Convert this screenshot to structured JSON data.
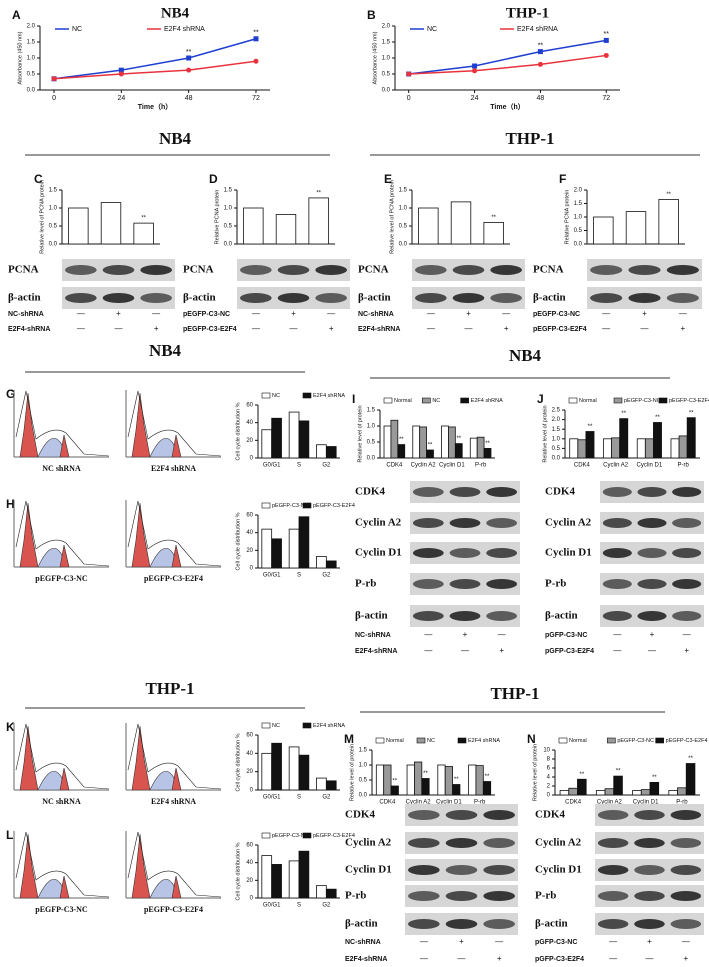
{
  "chart_data": [
    {
      "type": "line",
      "panel": "A",
      "title": "NB4",
      "xlabel": "Time（h）",
      "ylabel": "Absorbance (450 nm)",
      "x": [
        0,
        24,
        48,
        72
      ],
      "xlim": [
        -5,
        77
      ],
      "xticks": [
        0,
        24,
        48,
        72
      ],
      "ylim": [
        0,
        2
      ],
      "yticks": [
        {
          "value": 0,
          "label": "0.0"
        },
        {
          "value": 0.5,
          "label": "0.5"
        },
        {
          "value": 1,
          "label": "1.0"
        },
        {
          "value": 1.5,
          "label": "1.5"
        },
        {
          "value": 2,
          "label": "2.0"
        }
      ],
      "series": [
        {
          "name": "NC",
          "color": "#1f3fd1",
          "values": [
            0.35,
            0.62,
            1.0,
            1.6
          ]
        },
        {
          "name": "E2F4 shRNA",
          "color": "#e8323c",
          "values": [
            0.35,
            0.5,
            0.62,
            0.9
          ]
        }
      ],
      "annotations": [
        "**",
        "**"
      ]
    },
    {
      "type": "line",
      "panel": "B",
      "title": "THP-1",
      "xlabel": "Time（h）",
      "ylabel": "Absorbance (450 nm)",
      "x": [
        0,
        24,
        48,
        72
      ],
      "xlim": [
        -5,
        77
      ],
      "xticks": [
        0,
        24,
        48,
        72
      ],
      "ylim": [
        0,
        2
      ],
      "yticks": [
        {
          "value": 0,
          "label": "0.0"
        },
        {
          "value": 0.5,
          "label": "0.5"
        },
        {
          "value": 1,
          "label": "1.0"
        },
        {
          "value": 1.5,
          "label": "1.5"
        },
        {
          "value": 2,
          "label": "2.0"
        }
      ],
      "series": [
        {
          "name": "NC",
          "color": "#1f3fd1",
          "values": [
            0.5,
            0.75,
            1.2,
            1.55
          ]
        },
        {
          "name": "E2F4 shRNA",
          "color": "#e8323c",
          "values": [
            0.5,
            0.6,
            0.8,
            1.08
          ]
        }
      ],
      "annotations": [
        "**",
        "**"
      ]
    },
    {
      "type": "bar",
      "panel": "C",
      "ylabel": "Relative level of PCNA protein",
      "categories": [
        null,
        null,
        null
      ],
      "values": [
        1.0,
        1.15,
        0.58
      ],
      "color": "#ffffff",
      "ylim": [
        0,
        1.5
      ],
      "yticks": [
        {
          "value": 0,
          "label": "0.0"
        },
        {
          "value": 0.5,
          "label": "0.5"
        },
        {
          "value": 1,
          "label": "1.0"
        },
        {
          "value": 1.5,
          "label": "1.5"
        }
      ],
      "annotations": [
        "**"
      ]
    },
    {
      "type": "bar",
      "panel": "D",
      "ylabel": "Relative PCNA protein",
      "categories": [
        null,
        null,
        null
      ],
      "values": [
        1.0,
        0.82,
        1.28
      ],
      "color": "#ffffff",
      "ylim": [
        0,
        1.5
      ],
      "yticks": [
        {
          "value": 0,
          "label": "0.0"
        },
        {
          "value": 0.5,
          "label": "0.5"
        },
        {
          "value": 1,
          "label": "1.0"
        },
        {
          "value": 1.5,
          "label": "1.5"
        }
      ],
      "annotations": [
        "**"
      ]
    },
    {
      "type": "bar",
      "panel": "E",
      "ylabel": "Relative level of PCNA protein",
      "categories": [
        null,
        null,
        null
      ],
      "values": [
        1.0,
        1.17,
        0.6
      ],
      "color": "#ffffff",
      "ylim": [
        0,
        1.5
      ],
      "yticks": [
        {
          "value": 0,
          "label": "0.0"
        },
        {
          "value": 0.5,
          "label": "0.5"
        },
        {
          "value": 1,
          "label": "1.0"
        },
        {
          "value": 1.5,
          "label": "1.5"
        }
      ],
      "annotations": [
        "**"
      ]
    },
    {
      "type": "bar",
      "panel": "F",
      "ylabel": "Relative PCNA protein",
      "categories": [
        null,
        null,
        null
      ],
      "values": [
        1.0,
        1.2,
        1.65
      ],
      "color": "#ffffff",
      "ylim": [
        0,
        2
      ],
      "yticks": [
        {
          "value": 0,
          "label": "0.0"
        },
        {
          "value": 0.5,
          "label": "0.5"
        },
        {
          "value": 1,
          "label": "1.0"
        },
        {
          "value": 1.5,
          "label": "1.5"
        },
        {
          "value": 2,
          "label": "2.0"
        }
      ],
      "annotations": [
        "**"
      ]
    },
    {
      "type": "bar",
      "ylabel": "Cell cycle distribution %",
      "categories": [
        "G0/G1",
        "S",
        "G2"
      ],
      "ylim": [
        0,
        60
      ],
      "yticks": [
        0,
        20,
        40,
        60
      ],
      "series": [
        {
          "name": "NC",
          "color": "#ffffff",
          "values": [
            32,
            52,
            15
          ]
        },
        {
          "name": "E2F4 shRNA",
          "color": "#111111",
          "values": [
            45,
            42,
            13
          ]
        }
      ]
    },
    {
      "type": "bar",
      "ylabel": "Cell cycle distribution %",
      "categories": [
        "G0/G1",
        "S",
        "G2"
      ],
      "ylim": [
        0,
        60
      ],
      "yticks": [
        0,
        20,
        40,
        60
      ],
      "series": [
        {
          "name": "pEGFP-C3-NC",
          "color": "#ffffff",
          "values": [
            44,
            44,
            13
          ]
        },
        {
          "name": "pEGFP-C3-E2F4",
          "color": "#111111",
          "values": [
            33,
            58,
            8
          ]
        }
      ]
    },
    {
      "type": "bar",
      "panel": "I",
      "ylabel": "Relative level of protein",
      "categories": [
        "CDK4",
        "Cyclin A2",
        "Cyclin D1",
        "P-rb"
      ],
      "ylim": [
        0,
        1.5
      ],
      "yticks": [
        {
          "value": 0,
          "label": "0.0"
        },
        {
          "value": 0.5,
          "label": "0.5"
        },
        {
          "value": 1,
          "label": "1.0"
        },
        {
          "value": 1.5,
          "label": "1.5"
        }
      ],
      "series": [
        {
          "name": "Normal",
          "color": "#ffffff",
          "values": [
            1.0,
            1.0,
            1.0,
            0.62
          ]
        },
        {
          "name": "NC",
          "color": "#999999",
          "values": [
            1.18,
            0.97,
            0.97,
            0.65
          ]
        },
        {
          "name": "E2F4 shRNA",
          "color": "#111111",
          "values": [
            0.42,
            0.25,
            0.45,
            0.3
          ]
        }
      ],
      "annotations": [
        "**",
        "**",
        "**",
        "**"
      ]
    },
    {
      "type": "bar",
      "panel": "J",
      "ylabel": "Relative level of protein",
      "categories": [
        "CDK4",
        "Cyclin A2",
        "Cyclin D1",
        "P-rb"
      ],
      "ylim": [
        0,
        2.5
      ],
      "yticks": [
        {
          "value": 0,
          "label": "0.0"
        },
        {
          "value": 0.5,
          "label": "0.5"
        },
        {
          "value": 1,
          "label": "1.0"
        },
        {
          "value": 1.5,
          "label": "1.5"
        },
        {
          "value": 2,
          "label": "2.0"
        },
        {
          "value": 2.5,
          "label": "2.5"
        }
      ],
      "series": [
        {
          "name": "Normal",
          "color": "#ffffff",
          "values": [
            1.0,
            1.0,
            1.0,
            1.0
          ]
        },
        {
          "name": "pEGFP-C3-NC",
          "color": "#999999",
          "values": [
            0.95,
            1.05,
            1.0,
            1.15
          ]
        },
        {
          "name": "pEGFP-C3-E2F4",
          "color": "#111111",
          "values": [
            1.38,
            2.05,
            1.85,
            2.1
          ]
        }
      ],
      "annotations": [
        "**",
        "**",
        "**",
        "**"
      ]
    },
    {
      "type": "bar",
      "ylabel": "Cell cycle distribution %",
      "categories": [
        "G0/G1",
        "S",
        "G2"
      ],
      "ylim": [
        0,
        60
      ],
      "yticks": [
        0,
        20,
        40,
        60
      ],
      "series": [
        {
          "name": "NC",
          "color": "#ffffff",
          "values": [
            40,
            47,
            13
          ]
        },
        {
          "name": "E2F4 shRNA",
          "color": "#111111",
          "values": [
            51,
            38,
            10
          ]
        }
      ]
    },
    {
      "type": "bar",
      "ylabel": "Cell cycle distribution %",
      "categories": [
        "G0/G1",
        "S",
        "G2"
      ],
      "ylim": [
        0,
        60
      ],
      "yticks": [
        0,
        20,
        40,
        60
      ],
      "series": [
        {
          "name": "pEGFP-C3-NC",
          "color": "#ffffff",
          "values": [
            48,
            42,
            14
          ]
        },
        {
          "name": "pEGFP-C3-E2F4",
          "color": "#111111",
          "values": [
            38,
            53,
            10
          ]
        }
      ]
    },
    {
      "type": "bar",
      "panel": "M",
      "ylabel": "Relative level of protein",
      "categories": [
        "CDK4",
        "Cyclin A2",
        "Cyclin D1",
        "P-rb"
      ],
      "ylim": [
        0,
        1.5
      ],
      "yticks": [
        {
          "value": 0,
          "label": "0.0"
        },
        {
          "value": 0.5,
          "label": "0.5"
        },
        {
          "value": 1,
          "label": "1.0"
        },
        {
          "value": 1.5,
          "label": "1.5"
        }
      ],
      "series": [
        {
          "name": "Normal",
          "color": "#ffffff",
          "values": [
            1.0,
            1.0,
            1.0,
            1.0
          ]
        },
        {
          "name": "NC",
          "color": "#999999",
          "values": [
            1.0,
            1.1,
            0.95,
            0.98
          ]
        },
        {
          "name": "E2F4 shRNA",
          "color": "#111111",
          "values": [
            0.3,
            0.55,
            0.35,
            0.45
          ]
        }
      ],
      "annotations": [
        "**",
        "**",
        "**",
        "**"
      ]
    },
    {
      "type": "bar",
      "panel": "N",
      "ylabel": "Relative level of protein",
      "categories": [
        "CDK4",
        "Cyclin A2",
        "Cyclin D1",
        "P-rb"
      ],
      "ylim": [
        0,
        10
      ],
      "yticks": [
        0,
        2,
        4,
        6,
        8,
        10
      ],
      "series": [
        {
          "name": "Normal",
          "color": "#ffffff",
          "values": [
            1.0,
            1.0,
            1.0,
            1.0
          ]
        },
        {
          "name": "pEGFP-C3-NC",
          "color": "#999999",
          "values": [
            1.5,
            1.4,
            1.2,
            1.6
          ]
        },
        {
          "name": "pEGFP-C3-E2F4",
          "color": "#111111",
          "values": [
            3.5,
            4.2,
            2.8,
            7.0
          ]
        }
      ],
      "annotations": [
        "**",
        "**",
        "**",
        "**"
      ]
    }
  ],
  "section_headers": [
    "NB4",
    "THP-1",
    "NB4",
    "NB4",
    "THP-1",
    "THP-1"
  ],
  "flow_panels": [
    {
      "panel": "G",
      "labels": [
        "NC shRNA",
        "E2F4 shRNA"
      ]
    },
    {
      "panel": "H",
      "labels": [
        "pEGFP-C3-NC",
        "pEGFP-C3-E2F4"
      ]
    },
    {
      "panel": "K",
      "labels": [
        "NC shRNA",
        "E2F4 shRNA"
      ]
    },
    {
      "panel": "L",
      "labels": [
        "pEGFP-C3-NC",
        "pEGFP-C3-E2F4"
      ]
    }
  ],
  "blots": [
    {
      "bands": [
        "PCNA",
        "β-actin"
      ],
      "rows": [
        {
          "label": "NC-shRNA",
          "signs": [
            "—",
            "+",
            "—"
          ]
        },
        {
          "label": "E2F4-shRNA",
          "signs": [
            "—",
            "—",
            "+"
          ]
        }
      ]
    },
    {
      "bands": [
        "PCNA",
        "β-actin"
      ],
      "rows": [
        {
          "label": "pEGFP-C3-NC",
          "signs": [
            "—",
            "+",
            "—"
          ]
        },
        {
          "label": "pEGFP-C3-E2F4",
          "signs": [
            "—",
            "—",
            "+"
          ]
        }
      ]
    },
    {
      "bands": [
        "PCNA",
        "β-actin"
      ],
      "rows": [
        {
          "label": "NC-shRNA",
          "signs": [
            "—",
            "+",
            "—"
          ]
        },
        {
          "label": "E2F4-shRNA",
          "signs": [
            "—",
            "—",
            "+"
          ]
        }
      ]
    },
    {
      "bands": [
        "PCNA",
        "β-actin"
      ],
      "rows": [
        {
          "label": "pEGFP-C3-NC",
          "signs": [
            "—",
            "+",
            "—"
          ]
        },
        {
          "label": "pEGFP-C3-E2F4",
          "signs": [
            "—",
            "—",
            "+"
          ]
        }
      ]
    },
    {
      "bands": [
        "CDK4",
        "Cyclin A2",
        "Cyclin D1",
        "P-rb",
        "β-actin"
      ],
      "rows": [
        {
          "label": "NC-shRNA",
          "signs": [
            "—",
            "+",
            "—"
          ]
        },
        {
          "label": "E2F4-shRNA",
          "signs": [
            "—",
            "—",
            "+"
          ]
        }
      ]
    },
    {
      "bands": [
        "CDK4",
        "Cyclin A2",
        "Cyclin D1",
        "P-rb",
        "β-actin"
      ],
      "rows": [
        {
          "label": "pGFP-C3-NC",
          "signs": [
            "—",
            "+",
            "—"
          ]
        },
        {
          "label": "pGFP-C3-E2F4",
          "signs": [
            "—",
            "—",
            "+"
          ]
        }
      ]
    },
    {
      "bands": [
        "CDK4",
        "Cyclin A2",
        "Cyclin D1",
        "P-rb",
        "β-actin"
      ],
      "rows": [
        {
          "label": "NC-shRNA",
          "signs": [
            "—",
            "+",
            "—"
          ]
        },
        {
          "label": "E2F4-shRNA",
          "signs": [
            "—",
            "—",
            "+"
          ]
        }
      ]
    },
    {
      "bands": [
        "CDK4",
        "Cyclin A2",
        "Cyclin D1",
        "P-rb",
        "β-actin"
      ],
      "rows": [
        {
          "label": "pGFP-C3-NC",
          "signs": [
            "—",
            "+",
            "—"
          ]
        },
        {
          "label": "pGFP-C3-E2F4",
          "signs": [
            "—",
            "—",
            "+"
          ]
        }
      ]
    }
  ]
}
